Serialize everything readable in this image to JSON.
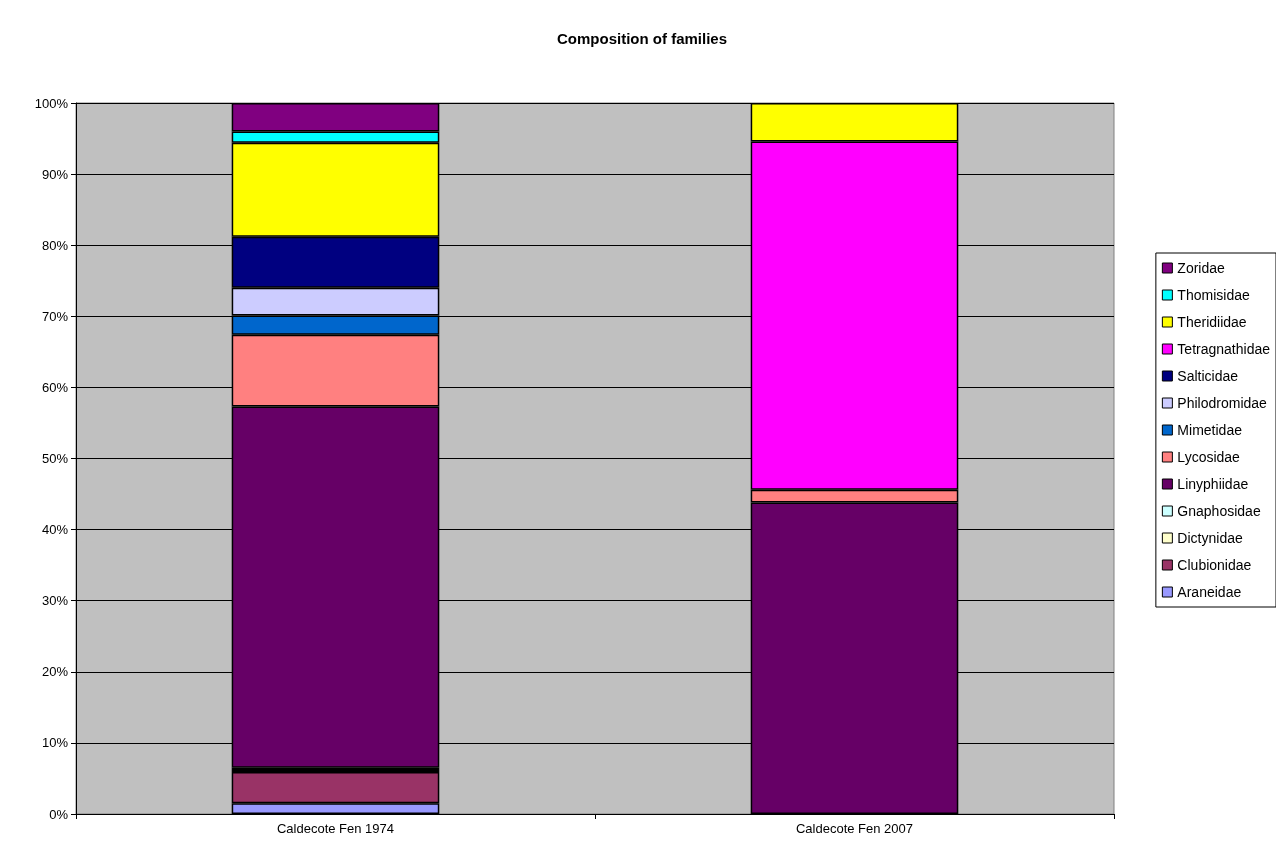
{
  "chart_data": {
    "type": "bar",
    "title": "Composition of families",
    "categories": [
      "Caldecote Fen 1974",
      "Caldecote Fen 2007"
    ],
    "stacked": true,
    "ylim": [
      0,
      100
    ],
    "yticks": [
      {
        "value": 0,
        "label": "0%"
      },
      {
        "value": 10,
        "label": "10%"
      },
      {
        "value": 20,
        "label": "20%"
      },
      {
        "value": 30,
        "label": "30%"
      },
      {
        "value": 40,
        "label": "40%"
      },
      {
        "value": 50,
        "label": "50%"
      },
      {
        "value": 60,
        "label": "60%"
      },
      {
        "value": 70,
        "label": "70%"
      },
      {
        "value": 80,
        "label": "80%"
      },
      {
        "value": 90,
        "label": "90%"
      },
      {
        "value": 100,
        "label": "100%"
      }
    ],
    "grid": "y",
    "legend": "right",
    "series": [
      {
        "name": "Araneidae",
        "color": "#9999ff",
        "values": [
          1.5,
          0
        ]
      },
      {
        "name": "Clubionidae",
        "color": "#993366",
        "values": [
          4.4,
          0
        ]
      },
      {
        "name": "Dictynidae",
        "color": "#ffffcc",
        "values": [
          0.3,
          0
        ]
      },
      {
        "name": "Gnaphosidae",
        "color": "#ccffff",
        "values": [
          0.3,
          0
        ]
      },
      {
        "name": "Linyphiidae",
        "color": "#660066",
        "values": [
          50.8,
          43.8
        ]
      },
      {
        "name": "Lycosidae",
        "color": "#ff8080",
        "values": [
          10.1,
          1.8
        ]
      },
      {
        "name": "Mimetidae",
        "color": "#0066cc",
        "values": [
          2.7,
          0
        ]
      },
      {
        "name": "Philodromidae",
        "color": "#ccccff",
        "values": [
          3.9,
          0
        ]
      },
      {
        "name": "Salticidae",
        "color": "#000080",
        "values": [
          7.2,
          0
        ]
      },
      {
        "name": "Tetragnathidae",
        "color": "#ff00ff",
        "values": [
          0,
          49.0
        ]
      },
      {
        "name": "Theridiidae",
        "color": "#ffff00",
        "values": [
          13.2,
          5.4
        ]
      },
      {
        "name": "Thomisidae",
        "color": "#00ffff",
        "values": [
          1.6,
          0
        ]
      },
      {
        "name": "Zoridae",
        "color": "#800080",
        "values": [
          4.0,
          0
        ]
      }
    ]
  }
}
